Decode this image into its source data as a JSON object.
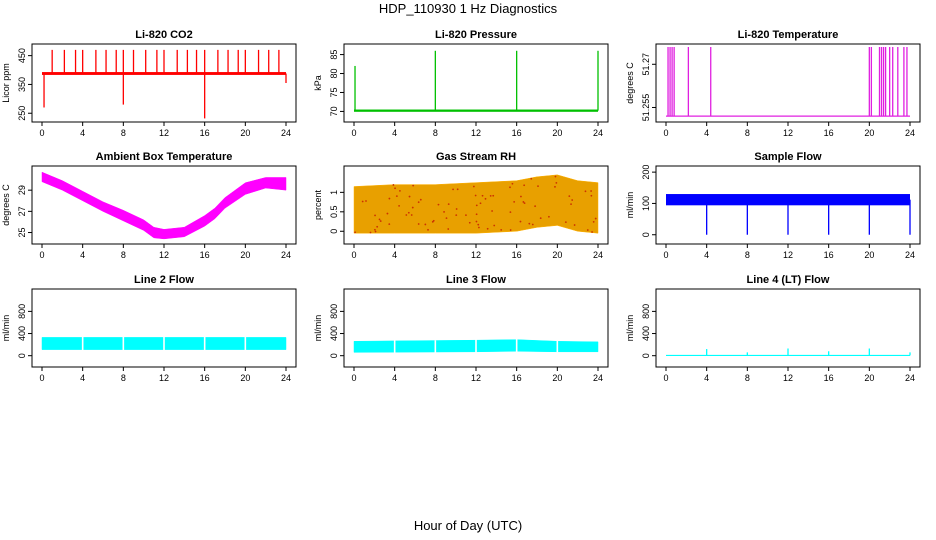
{
  "figure": {
    "title": "HDP_110930  1 Hz Diagnostics",
    "xlabel": "Hour of Day (UTC)"
  },
  "chart_data": [
    {
      "type": "line",
      "title": "Li-820 CO2",
      "ylabel": "Licor ppm",
      "color": "#ff0000",
      "xlim": [
        0,
        24
      ],
      "xticks": [
        0,
        4,
        8,
        12,
        16,
        20,
        24
      ],
      "ylim": [
        230,
        480
      ],
      "yticks": [
        250,
        350,
        450
      ],
      "series": [
        {
          "name": "baseline",
          "x": [
            0,
            24
          ],
          "y": [
            388,
            388
          ],
          "band": 5
        },
        {
          "name": "spikes",
          "x": [
            1,
            2.2,
            3.3,
            4,
            5.3,
            6.3,
            7.3,
            8,
            9,
            10.2,
            11.3,
            12,
            13.3,
            14.3,
            15.2,
            16,
            17.3,
            18.3,
            19.3,
            20,
            21.3,
            22.3,
            23.3
          ],
          "y": [
            470,
            470,
            470,
            470,
            470,
            470,
            470,
            470,
            470,
            470,
            470,
            470,
            470,
            470,
            470,
            470,
            470,
            470,
            470,
            470,
            470,
            470,
            470
          ]
        },
        {
          "name": "dips",
          "x": [
            0.2,
            8,
            16,
            24
          ],
          "y": [
            270,
            280,
            232,
            355
          ]
        }
      ]
    },
    {
      "type": "line",
      "title": "Li-820 Pressure",
      "ylabel": "kPa",
      "color": "#00c000",
      "xlim": [
        0,
        24
      ],
      "xticks": [
        0,
        4,
        8,
        12,
        16,
        20,
        24
      ],
      "ylim": [
        68,
        87
      ],
      "yticks": [
        70,
        75,
        80,
        85
      ],
      "series": [
        {
          "name": "baseline",
          "x": [
            0,
            24
          ],
          "y": [
            70.2,
            70.0
          ],
          "band": 0.3
        },
        {
          "name": "spikes",
          "x": [
            0.1,
            8,
            16,
            24
          ],
          "y": [
            82,
            86,
            86,
            86
          ]
        }
      ]
    },
    {
      "type": "line",
      "title": "Li-820 Temperature",
      "ylabel": "degrees C",
      "color": "#e020e0",
      "xlim": [
        0,
        24
      ],
      "xticks": [
        0,
        4,
        8,
        12,
        16,
        20,
        24
      ],
      "ylim": [
        51.251,
        51.276
      ],
      "yticks": [
        51.255,
        51.27
      ],
      "series": [
        {
          "name": "baseline",
          "x": [
            0,
            24
          ],
          "y": [
            51.252,
            51.252
          ]
        },
        {
          "name": "spikes",
          "x": [
            0.2,
            0.4,
            0.6,
            0.8,
            2.2,
            4.4,
            20,
            20.2,
            21,
            21.2,
            21.4,
            21.6,
            22,
            22.3,
            22.8,
            23.4,
            23.7
          ],
          "y": [
            51.276,
            51.276,
            51.276,
            51.276,
            51.276,
            51.276,
            51.276,
            51.276,
            51.276,
            51.276,
            51.276,
            51.276,
            51.276,
            51.276,
            51.276,
            51.276,
            51.276
          ]
        }
      ]
    },
    {
      "type": "area",
      "title": "Ambient Box Temperature",
      "ylabel": "degrees C",
      "color": "#ff00ff",
      "xlim": [
        0,
        24
      ],
      "xticks": [
        0,
        4,
        8,
        12,
        16,
        20,
        24
      ],
      "ylim": [
        24.2,
        31
      ],
      "yticks": [
        25,
        27,
        29
      ],
      "series": [
        {
          "name": "temperature",
          "x": [
            0,
            2,
            4,
            6,
            8,
            10,
            11,
            12,
            14,
            16,
            17,
            18,
            20,
            22,
            24
          ],
          "upper": [
            30.7,
            29.9,
            28.9,
            27.9,
            27.1,
            26.2,
            25.5,
            25.3,
            25.5,
            26.6,
            27.3,
            28.3,
            29.7,
            30.2,
            30.2
          ],
          "lower": [
            29.8,
            29.0,
            28.0,
            27.0,
            26.1,
            25.2,
            24.5,
            24.4,
            24.6,
            25.6,
            26.3,
            27.3,
            28.6,
            29.2,
            29.0
          ]
        }
      ]
    },
    {
      "type": "area",
      "title": "Gas Stream RH",
      "ylabel": "percent",
      "color": "#ffb000",
      "xlim": [
        0,
        24
      ],
      "xticks": [
        0,
        4,
        8,
        12,
        16,
        20,
        24
      ],
      "ylim": [
        -0.25,
        1.6
      ],
      "yticks": [
        0.0,
        0.5,
        1.0
      ],
      "series": [
        {
          "name": "rh",
          "x": [
            0,
            4,
            8,
            12,
            16,
            18,
            20,
            22,
            24
          ],
          "upper": [
            1.15,
            1.2,
            1.2,
            1.25,
            1.3,
            1.4,
            1.45,
            1.3,
            1.25
          ],
          "lower": [
            -0.05,
            -0.05,
            -0.05,
            -0.05,
            0.0,
            0.1,
            0.15,
            0.0,
            -0.05
          ]
        }
      ]
    },
    {
      "type": "line",
      "title": "Sample Flow",
      "ylabel": "ml/min",
      "color": "#0000ff",
      "xlim": [
        0,
        24
      ],
      "xticks": [
        0,
        4,
        8,
        12,
        16,
        20,
        24
      ],
      "ylim": [
        -20,
        210
      ],
      "yticks": [
        0,
        100,
        200
      ],
      "series": [
        {
          "name": "baseline",
          "x": [
            0,
            24
          ],
          "y": [
            112,
            112
          ],
          "band": 18
        },
        {
          "name": "dips",
          "x": [
            4,
            8,
            12,
            16,
            20,
            24
          ],
          "y": [
            0,
            0,
            0,
            0,
            0,
            0
          ]
        }
      ]
    },
    {
      "type": "area",
      "title": "Line 2 Flow",
      "ylabel": "ml/min",
      "color": "#00ffff",
      "xlim": [
        0,
        24
      ],
      "xticks": [
        0,
        4,
        8,
        12,
        16,
        20,
        24
      ],
      "ylim": [
        -150,
        1150
      ],
      "yticks": [
        0,
        400,
        800
      ],
      "series": [
        {
          "name": "flow",
          "x": [
            0,
            24
          ],
          "upper": [
            330,
            330
          ],
          "lower": [
            110,
            110
          ]
        },
        {
          "name": "gaps",
          "x": [
            4,
            8,
            12,
            16,
            20
          ],
          "y": [
            330,
            330,
            330,
            330,
            330
          ]
        }
      ]
    },
    {
      "type": "area",
      "title": "Line 3 Flow",
      "ylabel": "ml/min",
      "color": "#00ffff",
      "xlim": [
        0,
        24
      ],
      "xticks": [
        0,
        4,
        8,
        12,
        16,
        20,
        24
      ],
      "ylim": [
        -150,
        1150
      ],
      "yticks": [
        0,
        400,
        800
      ],
      "series": [
        {
          "name": "flow",
          "x": [
            0,
            12,
            16,
            20,
            24
          ],
          "upper": [
            260,
            280,
            290,
            260,
            250
          ],
          "lower": [
            60,
            70,
            80,
            70,
            70
          ]
        },
        {
          "name": "gaps",
          "x": [
            4,
            8,
            12,
            16,
            20
          ],
          "y": [
            260,
            260,
            280,
            290,
            260
          ]
        }
      ]
    },
    {
      "type": "line",
      "title": "Line 4 (LT) Flow",
      "ylabel": "ml/min",
      "color": "#00ffff",
      "xlim": [
        0,
        24
      ],
      "xticks": [
        0,
        4,
        8,
        12,
        16,
        20,
        24
      ],
      "ylim": [
        -150,
        1150
      ],
      "yticks": [
        0,
        400,
        800
      ],
      "series": [
        {
          "name": "baseline",
          "x": [
            0,
            24
          ],
          "y": [
            5,
            5
          ]
        },
        {
          "name": "spikes",
          "x": [
            4,
            8,
            12,
            16,
            20,
            24
          ],
          "y": [
            120,
            60,
            130,
            80,
            130,
            60
          ]
        }
      ]
    }
  ]
}
